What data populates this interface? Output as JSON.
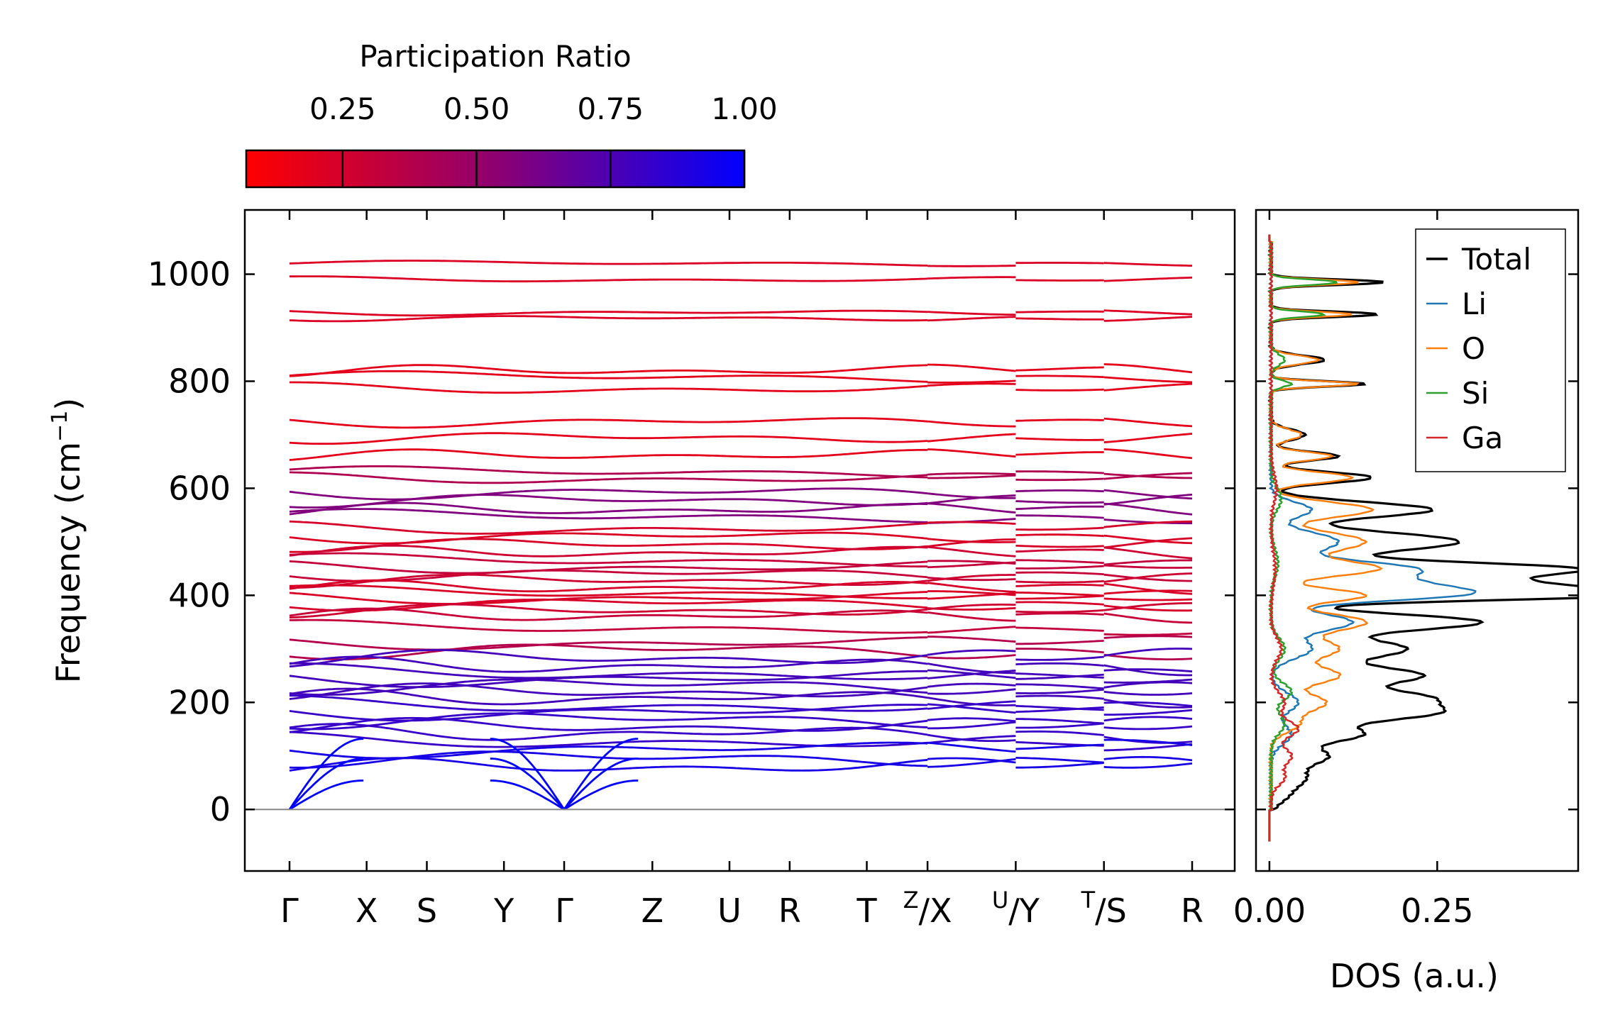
{
  "chart_data": [
    {
      "type": "line",
      "title": "",
      "xlabel": "",
      "ylabel_main": "Frequency (cm",
      "ylabel_sup": "−1",
      "ylabel_close": ")",
      "ylim": [
        -115,
        1120
      ],
      "yticks": [
        0,
        200,
        400,
        600,
        800,
        1000
      ],
      "path_segments": [
        {
          "labels": [
            "Γ",
            "X",
            "S",
            "Y",
            "Γ",
            "Z",
            "U",
            "R",
            "T",
            "Z"
          ],
          "distance": [
            0,
            0.146,
            0.26,
            0.406,
            0.52,
            0.687,
            0.833,
            0.947,
            1.093,
            1.208
          ]
        },
        {
          "labels": [
            "X",
            "U"
          ],
          "distance": [
            1.208,
            1.375
          ]
        },
        {
          "labels": [
            "Y",
            "T"
          ],
          "distance": [
            1.375,
            1.542
          ]
        },
        {
          "labels": [
            "S",
            "R"
          ],
          "distance": [
            1.542,
            1.709
          ]
        }
      ],
      "tick_labels": [
        {
          "t": 0.0,
          "label": "Γ"
        },
        {
          "t": 0.146,
          "label": "X"
        },
        {
          "t": 0.26,
          "label": "S"
        },
        {
          "t": 0.406,
          "label": "Y"
        },
        {
          "t": 0.52,
          "label": "Γ"
        },
        {
          "t": 0.687,
          "label": "Z"
        },
        {
          "t": 0.833,
          "label": "U"
        },
        {
          "t": 0.947,
          "label": "R"
        },
        {
          "t": 1.093,
          "label": "T"
        },
        {
          "t": 1.208,
          "sup": "Z",
          "label": "/X"
        },
        {
          "t": 1.375,
          "sup": "U",
          "label": "/Y"
        },
        {
          "t": 1.542,
          "sup": "T",
          "label": "/S"
        },
        {
          "t": 1.709,
          "label": "R"
        }
      ],
      "band_levels": [
        1020,
        990,
        928,
        918,
        820,
        808,
        786,
        724,
        695,
        662,
        630,
        618,
        592,
        578,
        560,
        548,
        525,
        510,
        495,
        480,
        465,
        452,
        440,
        428,
        415,
        405,
        395,
        385,
        372,
        362,
        340,
        310,
        298,
        283,
        268,
        255,
        244,
        232,
        220,
        208,
        195,
        182,
        168,
        155,
        142,
        128,
        112,
        96,
        80
      ],
      "colorbar": {
        "label": "Participation Ratio",
        "min": 0.07,
        "max": 1.0,
        "ticks": [
          0.25,
          0.5,
          0.75,
          1.0
        ],
        "tick_labels": [
          "0.25",
          "0.50",
          "0.75",
          "1.00"
        ],
        "low_color": "#ff0000",
        "mid_color": "#8e0070",
        "high_color": "#0000ff"
      },
      "zero_line_color": "#888888"
    },
    {
      "type": "line",
      "xlabel": "DOS (a.u.)",
      "xlim": [
        -0.02,
        0.46
      ],
      "xticks": [
        0.0,
        0.25
      ],
      "xtick_labels": [
        "0.00",
        "0.25"
      ],
      "ylim": [
        -115,
        1120
      ],
      "series": [
        {
          "name": "Total",
          "color": "#000000",
          "peaks": [
            [
              985,
              0.17,
              5
            ],
            [
              925,
              0.16,
              5
            ],
            [
              840,
              0.08,
              8
            ],
            [
              795,
              0.14,
              5
            ],
            [
              700,
              0.05,
              10
            ],
            [
              660,
              0.1,
              8
            ],
            [
              620,
              0.15,
              10
            ],
            [
              560,
              0.24,
              14
            ],
            [
              500,
              0.28,
              18
            ],
            [
              450,
              0.42,
              12
            ],
            [
              420,
              0.36,
              14
            ],
            [
              400,
              0.43,
              10
            ],
            [
              350,
              0.31,
              15
            ],
            [
              300,
              0.2,
              18
            ],
            [
              250,
              0.22,
              16
            ],
            [
              210,
              0.2,
              14
            ],
            [
              180,
              0.23,
              15
            ],
            [
              140,
              0.13,
              14
            ],
            [
              100,
              0.08,
              15
            ],
            [
              60,
              0.05,
              18
            ],
            [
              25,
              0.02,
              15
            ]
          ]
        },
        {
          "name": "Li",
          "color": "#1f77b4",
          "peaks": [
            [
              560,
              0.06,
              14
            ],
            [
              500,
              0.1,
              18
            ],
            [
              450,
              0.2,
              14
            ],
            [
              420,
              0.18,
              14
            ],
            [
              400,
              0.22,
              12
            ],
            [
              350,
              0.12,
              16
            ],
            [
              300,
              0.06,
              18
            ],
            [
              200,
              0.04,
              18
            ],
            [
              140,
              0.03,
              18
            ]
          ]
        },
        {
          "name": "O",
          "color": "#ff7f0e",
          "peaks": [
            [
              985,
              0.13,
              5
            ],
            [
              925,
              0.12,
              5
            ],
            [
              840,
              0.07,
              8
            ],
            [
              795,
              0.13,
              5
            ],
            [
              700,
              0.045,
              10
            ],
            [
              660,
              0.09,
              8
            ],
            [
              620,
              0.12,
              10
            ],
            [
              560,
              0.15,
              14
            ],
            [
              500,
              0.14,
              18
            ],
            [
              450,
              0.16,
              14
            ],
            [
              400,
              0.14,
              12
            ],
            [
              350,
              0.14,
              16
            ],
            [
              300,
              0.1,
              18
            ],
            [
              250,
              0.1,
              16
            ],
            [
              200,
              0.08,
              16
            ],
            [
              160,
              0.04,
              16
            ]
          ]
        },
        {
          "name": "Si",
          "color": "#2ca02c",
          "peaks": [
            [
              985,
              0.1,
              5
            ],
            [
              925,
              0.08,
              5
            ],
            [
              840,
              0.02,
              10
            ],
            [
              795,
              0.03,
              6
            ],
            [
              580,
              0.015,
              20
            ],
            [
              460,
              0.01,
              25
            ],
            [
              300,
              0.02,
              20
            ],
            [
              220,
              0.03,
              16
            ],
            [
              160,
              0.02,
              18
            ]
          ]
        },
        {
          "name": "Ga",
          "color": "#d62728",
          "peaks": [
            [
              600,
              0.008,
              25
            ],
            [
              450,
              0.006,
              30
            ],
            [
              300,
              0.015,
              20
            ],
            [
              200,
              0.02,
              18
            ],
            [
              150,
              0.04,
              15
            ],
            [
              100,
              0.03,
              15
            ],
            [
              60,
              0.02,
              15
            ]
          ]
        }
      ],
      "legend_position": "top-right"
    }
  ]
}
